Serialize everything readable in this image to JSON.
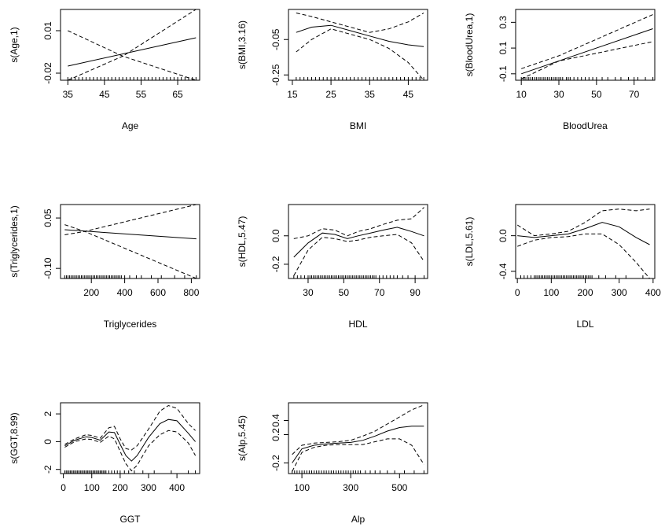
{
  "chart_data": [
    {
      "type": "line",
      "ylabel": "s(Age,1)",
      "xlabel": "Age",
      "xlim": [
        33,
        71
      ],
      "ylim": [
        -0.025,
        0.025
      ],
      "xticks": [
        "35",
        "45",
        "55",
        "65"
      ],
      "xtick_values": [
        35,
        45,
        55,
        65
      ],
      "yticks": [
        "-0.02",
        "0.01"
      ],
      "ytick_values": [
        -0.02,
        0.01
      ],
      "series": [
        {
          "role": "estimate",
          "x": [
            35,
            70
          ],
          "y": [
            -0.015,
            0.005
          ]
        },
        {
          "role": "upper",
          "x": [
            35,
            50,
            70
          ],
          "y": [
            0.01,
            -0.008,
            0.025
          ]
        },
        {
          "role": "lower",
          "x": [
            35,
            50,
            70
          ],
          "y": [
            -0.025,
            -0.008,
            -0.025
          ]
        }
      ],
      "rug": [
        35,
        36,
        37,
        38,
        39,
        40,
        41,
        42,
        43,
        44,
        45,
        46,
        47,
        48,
        49,
        50,
        51,
        52,
        53,
        54,
        55,
        56,
        57,
        58,
        59,
        60,
        61,
        62,
        63,
        64,
        65,
        66,
        67,
        68,
        69,
        70
      ]
    },
    {
      "type": "line",
      "ylabel": "s(BMI,3.16)",
      "xlabel": "BMI",
      "xlim": [
        14,
        50
      ],
      "ylim": [
        -0.28,
        0.12
      ],
      "xticks": [
        "15",
        "25",
        "35",
        "45"
      ],
      "xtick_values": [
        15,
        25,
        35,
        45
      ],
      "yticks": [
        "-0.25",
        "-0.05"
      ],
      "ytick_values": [
        -0.25,
        -0.05
      ],
      "series": [
        {
          "role": "estimate",
          "x": [
            16,
            20,
            25,
            30,
            35,
            40,
            45,
            49
          ],
          "y": [
            -0.01,
            0.02,
            0.03,
            0.0,
            -0.03,
            -0.06,
            -0.08,
            -0.09
          ]
        },
        {
          "role": "upper",
          "x": [
            16,
            20,
            25,
            30,
            35,
            40,
            45,
            49
          ],
          "y": [
            0.1,
            0.08,
            0.05,
            0.02,
            -0.01,
            0.01,
            0.05,
            0.1
          ]
        },
        {
          "role": "lower",
          "x": [
            16,
            20,
            25,
            30,
            35,
            40,
            45,
            49
          ],
          "y": [
            -0.12,
            -0.05,
            0.01,
            -0.02,
            -0.05,
            -0.1,
            -0.18,
            -0.28
          ]
        }
      ],
      "rug": [
        16,
        17,
        18,
        19,
        20,
        21,
        22,
        23,
        24,
        25,
        26,
        27,
        28,
        29,
        30,
        31,
        32,
        33,
        34,
        35,
        36,
        37,
        38,
        39,
        40,
        41,
        42,
        43,
        44,
        45,
        46,
        47,
        48,
        49
      ]
    },
    {
      "type": "line",
      "ylabel": "s(BloodUrea,1)",
      "xlabel": "BloodUrea",
      "xlim": [
        7,
        81
      ],
      "ylim": [
        -0.15,
        0.4
      ],
      "xticks": [
        "10",
        "30",
        "50",
        "70"
      ],
      "xtick_values": [
        10,
        30,
        50,
        70
      ],
      "yticks": [
        "-0.1",
        "0.1",
        "0.3"
      ],
      "ytick_values": [
        -0.1,
        0.1,
        0.3
      ],
      "series": [
        {
          "role": "estimate",
          "x": [
            10,
            80
          ],
          "y": [
            -0.1,
            0.25
          ]
        },
        {
          "role": "upper",
          "x": [
            10,
            30,
            80
          ],
          "y": [
            -0.06,
            0.04,
            0.36
          ]
        },
        {
          "role": "lower",
          "x": [
            10,
            30,
            80
          ],
          "y": [
            -0.14,
            0.0,
            0.15
          ]
        }
      ],
      "rug": [
        10,
        11,
        12,
        13,
        14,
        15,
        16,
        17,
        18,
        19,
        20,
        21,
        22,
        23,
        24,
        25,
        26,
        27,
        28,
        29,
        30,
        31,
        32,
        34,
        35,
        36,
        38,
        40,
        42,
        44,
        46,
        48,
        50,
        53,
        56,
        60,
        63,
        67,
        70,
        72,
        76,
        80
      ]
    },
    {
      "type": "line",
      "ylabel": "s(Triglycerides,1)",
      "xlabel": "Triglycerides",
      "xlim": [
        15,
        850
      ],
      "ylim": [
        -0.13,
        0.09
      ],
      "xticks": [
        "200",
        "400",
        "600",
        "800"
      ],
      "xtick_values": [
        200,
        400,
        600,
        800
      ],
      "yticks": [
        "-0.10",
        "0.05"
      ],
      "ytick_values": [
        -0.1,
        0.05
      ],
      "series": [
        {
          "role": "estimate",
          "x": [
            40,
            830
          ],
          "y": [
            0.015,
            -0.012
          ]
        },
        {
          "role": "upper",
          "x": [
            40,
            160,
            830
          ],
          "y": [
            0.0,
            0.01,
            0.09
          ]
        },
        {
          "role": "lower",
          "x": [
            40,
            160,
            830
          ],
          "y": [
            0.03,
            0.01,
            -0.13
          ]
        }
      ],
      "rug": [
        40,
        50,
        60,
        70,
        80,
        90,
        100,
        110,
        120,
        130,
        140,
        150,
        160,
        170,
        180,
        190,
        200,
        210,
        220,
        230,
        240,
        250,
        260,
        270,
        280,
        290,
        300,
        310,
        320,
        330,
        340,
        350,
        360,
        370,
        380,
        400,
        430,
        470,
        500,
        560,
        620,
        700,
        760,
        830
      ]
    },
    {
      "type": "line",
      "ylabel": "s(HDL,5.47)",
      "xlabel": "HDL",
      "xlim": [
        19,
        97
      ],
      "ylim": [
        -0.3,
        0.22
      ],
      "xticks": [
        "30",
        "50",
        "70",
        "90"
      ],
      "xtick_values": [
        30,
        50,
        70,
        90
      ],
      "yticks": [
        "-0.2",
        "0.0"
      ],
      "ytick_values": [
        -0.2,
        0.0
      ],
      "series": [
        {
          "role": "estimate",
          "x": [
            22,
            30,
            38,
            45,
            52,
            58,
            65,
            72,
            80,
            88,
            95
          ],
          "y": [
            -0.15,
            -0.05,
            0.02,
            0.01,
            -0.02,
            0.0,
            0.02,
            0.04,
            0.06,
            0.03,
            0.0
          ]
        },
        {
          "role": "upper",
          "x": [
            22,
            30,
            38,
            45,
            52,
            58,
            65,
            72,
            80,
            88,
            95
          ],
          "y": [
            -0.02,
            0.0,
            0.05,
            0.04,
            0.0,
            0.03,
            0.05,
            0.08,
            0.11,
            0.12,
            0.2
          ]
        },
        {
          "role": "lower",
          "x": [
            22,
            30,
            38,
            45,
            52,
            58,
            65,
            72,
            80,
            88,
            95
          ],
          "y": [
            -0.28,
            -0.1,
            -0.01,
            -0.02,
            -0.04,
            -0.03,
            -0.01,
            0.0,
            0.01,
            -0.05,
            -0.18
          ]
        }
      ],
      "rug": [
        22,
        24,
        26,
        28,
        30,
        31,
        32,
        33,
        34,
        35,
        36,
        37,
        38,
        39,
        40,
        41,
        42,
        43,
        44,
        45,
        46,
        47,
        48,
        49,
        50,
        51,
        52,
        53,
        54,
        55,
        56,
        57,
        58,
        59,
        60,
        61,
        62,
        63,
        64,
        65,
        66,
        67,
        68,
        70,
        72,
        74,
        76,
        78,
        80,
        83,
        86,
        90,
        95
      ]
    },
    {
      "type": "line",
      "ylabel": "s(LDL,5.61)",
      "xlabel": "LDL",
      "xlim": [
        -5,
        405
      ],
      "ylim": [
        -0.48,
        0.35
      ],
      "xticks": [
        "0",
        "100",
        "200",
        "300",
        "400"
      ],
      "xtick_values": [
        0,
        100,
        200,
        300,
        400
      ],
      "yticks": [
        "-0.4",
        "0.0"
      ],
      "ytick_values": [
        -0.4,
        0.0
      ],
      "series": [
        {
          "role": "estimate",
          "x": [
            0,
            50,
            100,
            150,
            200,
            250,
            300,
            350,
            390
          ],
          "y": [
            0.0,
            -0.02,
            0.0,
            0.02,
            0.08,
            0.15,
            0.1,
            -0.02,
            -0.1
          ]
        },
        {
          "role": "upper",
          "x": [
            0,
            50,
            100,
            150,
            200,
            250,
            300,
            350,
            390
          ],
          "y": [
            0.12,
            0.0,
            0.02,
            0.05,
            0.15,
            0.28,
            0.3,
            0.28,
            0.3
          ]
        },
        {
          "role": "lower",
          "x": [
            0,
            50,
            100,
            150,
            200,
            250,
            300,
            350,
            390
          ],
          "y": [
            -0.12,
            -0.05,
            -0.02,
            -0.01,
            0.02,
            0.02,
            -0.1,
            -0.3,
            -0.48
          ]
        }
      ],
      "rug": [
        10,
        20,
        30,
        40,
        50,
        55,
        60,
        65,
        70,
        75,
        80,
        85,
        90,
        95,
        100,
        105,
        110,
        115,
        120,
        125,
        130,
        135,
        140,
        145,
        150,
        155,
        160,
        165,
        170,
        175,
        180,
        185,
        190,
        195,
        200,
        205,
        210,
        215,
        220,
        240,
        260,
        290,
        320,
        370
      ]
    },
    {
      "type": "line",
      "ylabel": "s(GGT,8.99)",
      "xlabel": "GGT",
      "xlim": [
        -10,
        480
      ],
      "ylim": [
        -2.3,
        2.8
      ],
      "xticks": [
        "0",
        "100",
        "200",
        "300",
        "400"
      ],
      "xtick_values": [
        0,
        100,
        200,
        300,
        400
      ],
      "yticks": [
        "-2",
        "0",
        "2"
      ],
      "ytick_values": [
        -2,
        0,
        2
      ],
      "series": [
        {
          "role": "estimate",
          "x": [
            5,
            40,
            80,
            100,
            130,
            160,
            180,
            200,
            220,
            240,
            260,
            300,
            340,
            370,
            400,
            440,
            465
          ],
          "y": [
            -0.3,
            0.1,
            0.35,
            0.3,
            0.1,
            0.7,
            0.65,
            -0.2,
            -1.0,
            -1.4,
            -1.0,
            0.3,
            1.3,
            1.6,
            1.5,
            0.6,
            0.0
          ]
        },
        {
          "role": "upper",
          "x": [
            5,
            40,
            80,
            100,
            130,
            160,
            180,
            200,
            220,
            240,
            260,
            300,
            340,
            370,
            400,
            440,
            465
          ],
          "y": [
            -0.2,
            0.2,
            0.5,
            0.45,
            0.25,
            1.0,
            1.1,
            0.2,
            -0.5,
            -0.6,
            -0.3,
            0.9,
            2.2,
            2.6,
            2.4,
            1.3,
            0.8
          ]
        },
        {
          "role": "lower",
          "x": [
            5,
            40,
            80,
            100,
            130,
            160,
            180,
            200,
            220,
            240,
            260,
            300,
            340,
            370,
            400,
            440,
            465
          ],
          "y": [
            -0.4,
            0.0,
            0.2,
            0.15,
            -0.05,
            0.4,
            0.2,
            -0.7,
            -1.6,
            -2.1,
            -1.7,
            -0.3,
            0.5,
            0.8,
            0.7,
            -0.1,
            -1.0
          ]
        }
      ],
      "rug": [
        5,
        10,
        15,
        20,
        25,
        30,
        35,
        40,
        45,
        50,
        55,
        60,
        65,
        70,
        75,
        80,
        85,
        90,
        95,
        100,
        105,
        110,
        115,
        120,
        125,
        130,
        135,
        140,
        145,
        150,
        160,
        170,
        180,
        190,
        200,
        215,
        230,
        250,
        280,
        320,
        380,
        440,
        465
      ]
    },
    {
      "type": "line",
      "ylabel": "s(Alp,5.45)",
      "xlabel": "Alp",
      "xlim": [
        45,
        615
      ],
      "ylim": [
        -0.35,
        0.65
      ],
      "xticks": [
        "100",
        "300",
        "500"
      ],
      "xtick_values": [
        100,
        300,
        500
      ],
      "yticks": [
        "-0.2",
        "0.2",
        "0.4"
      ],
      "ytick_values": [
        -0.2,
        0.2,
        0.4
      ],
      "series": [
        {
          "role": "estimate",
          "x": [
            60,
            100,
            150,
            200,
            250,
            300,
            350,
            400,
            450,
            500,
            550,
            600
          ],
          "y": [
            -0.2,
            0.0,
            0.05,
            0.07,
            0.08,
            0.09,
            0.12,
            0.18,
            0.25,
            0.3,
            0.32,
            0.32
          ]
        },
        {
          "role": "upper",
          "x": [
            60,
            100,
            150,
            200,
            250,
            300,
            350,
            400,
            450,
            500,
            550,
            600
          ],
          "y": [
            -0.08,
            0.05,
            0.08,
            0.09,
            0.1,
            0.12,
            0.18,
            0.25,
            0.35,
            0.45,
            0.55,
            0.62
          ]
        },
        {
          "role": "lower",
          "x": [
            60,
            100,
            150,
            200,
            250,
            300,
            350,
            400,
            450,
            500,
            550,
            600
          ],
          "y": [
            -0.32,
            -0.05,
            0.02,
            0.05,
            0.06,
            0.06,
            0.06,
            0.1,
            0.14,
            0.14,
            0.05,
            -0.22
          ]
        }
      ],
      "rug": [
        60,
        70,
        80,
        90,
        100,
        110,
        120,
        130,
        140,
        150,
        160,
        170,
        180,
        190,
        200,
        210,
        220,
        230,
        240,
        250,
        260,
        270,
        280,
        290,
        300,
        310,
        320,
        330,
        340,
        360,
        380,
        400,
        420,
        450,
        480,
        520,
        560,
        600
      ]
    }
  ]
}
